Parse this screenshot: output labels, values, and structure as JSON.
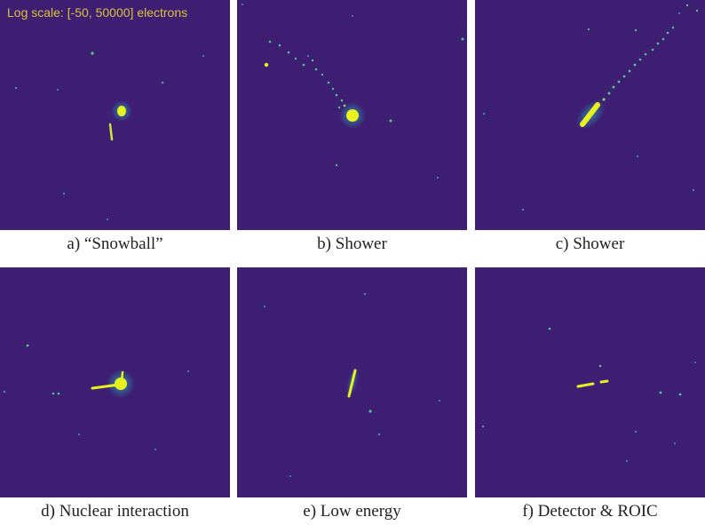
{
  "scale_label": "Log scale: [-50, 50000] electrons",
  "colors": {
    "background": "#3e1f73",
    "hit_bright": "#e8f020",
    "hit_mid": "#4dc98a",
    "halo": "#2a9ab0"
  },
  "panels": [
    {
      "caption": "a) “Snowball”"
    },
    {
      "caption": "b) Shower"
    },
    {
      "caption": "c) Shower"
    },
    {
      "caption": "d) Nuclear interaction"
    },
    {
      "caption": "e) Low energy"
    },
    {
      "caption": "f) Detector & ROIC"
    }
  ]
}
